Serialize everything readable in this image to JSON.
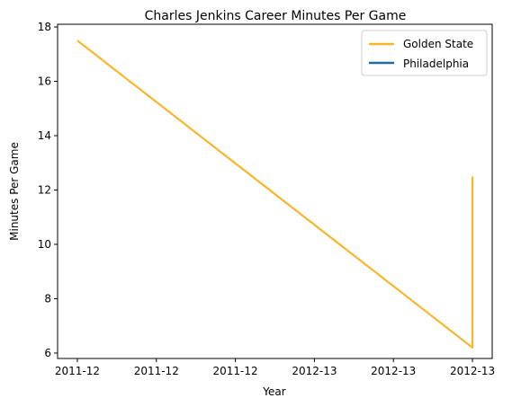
{
  "chart_data": {
    "type": "line",
    "title": "Charles Jenkins  Career Minutes Per Game",
    "xlabel": "Year",
    "ylabel": "Minutes Per Game",
    "xlim": [
      -0.15,
      3.15
    ],
    "ylim": [
      5.8,
      18.1
    ],
    "x_ticks": [
      {
        "x": 0.0,
        "label": "2011-12"
      },
      {
        "x": 0.6,
        "label": "2011-12"
      },
      {
        "x": 1.2,
        "label": "2011-12"
      },
      {
        "x": 1.8,
        "label": "2012-13"
      },
      {
        "x": 2.4,
        "label": "2012-13"
      },
      {
        "x": 3.0,
        "label": "2012-13"
      }
    ],
    "y_ticks": [
      6,
      8,
      10,
      12,
      14,
      16,
      18
    ],
    "series": [
      {
        "name": "Golden State",
        "color": "#fbb52d",
        "x": [
          "2011-12",
          "2012-13",
          "2012-13"
        ],
        "values": [
          17.5,
          6.2,
          12.5
        ],
        "x_positions": [
          0,
          3,
          3
        ]
      },
      {
        "name": "Philadelphia",
        "color": "#1f6aa5",
        "x": [],
        "values": [],
        "x_positions": []
      }
    ],
    "legend_position": "top-right",
    "grid": false
  }
}
